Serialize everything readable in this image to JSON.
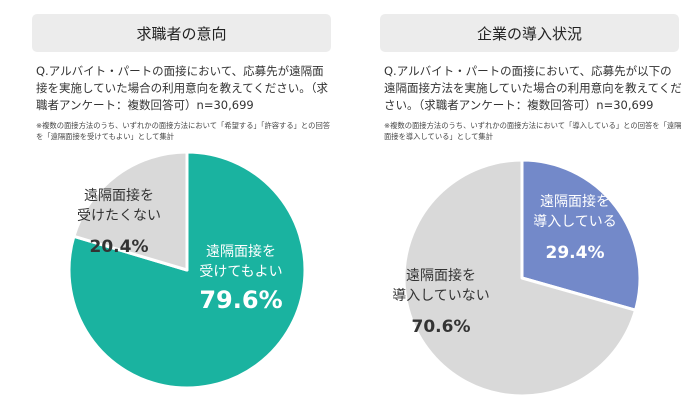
{
  "chart_data": [
    {
      "type": "pie",
      "title": "求職者の意向",
      "question": "Q.アルバイト・パートの面接において、応募先が遠隔面接を実施していた場合の利用意向を教えてください。（求職者アンケート：複数回答可）n=30,699",
      "note": "※複数の面接方法のうち、いずれかの面接方法において「希望する」「許容する」との回答を「遠隔面接を受けてもよい」として集計",
      "slices": [
        {
          "label_lines": [
            "遠隔面接を",
            "受けてもよい"
          ],
          "value": 79.6,
          "value_label": "79.6%",
          "color": "#1ab3a0",
          "text_color": "#ffffff"
        },
        {
          "label_lines": [
            "遠隔面接を",
            "受けたくない"
          ],
          "value": 20.4,
          "value_label": "20.4%",
          "color": "#d9d9d9",
          "text_color": "#333333"
        }
      ]
    },
    {
      "type": "pie",
      "title": "企業の導入状況",
      "question": "Q.アルバイト・パートの面接において、応募先が以下の遠隔面接方法を実施していた場合の利用意向を教えてください。（求職者アンケート：複数回答可）n=30,699",
      "note": "※複数の面接方法のうち、いずれかの面接方法において「導入している」との回答を「遠隔面接を導入している」として集計",
      "slices": [
        {
          "label_lines": [
            "遠隔面接を",
            "導入している"
          ],
          "value": 29.4,
          "value_label": "29.4%",
          "color": "#7389c9",
          "text_color": "#ffffff"
        },
        {
          "label_lines": [
            "遠隔面接を",
            "導入していない"
          ],
          "value": 70.6,
          "value_label": "70.6%",
          "color": "#d9d9d9",
          "text_color": "#333333"
        }
      ]
    }
  ]
}
